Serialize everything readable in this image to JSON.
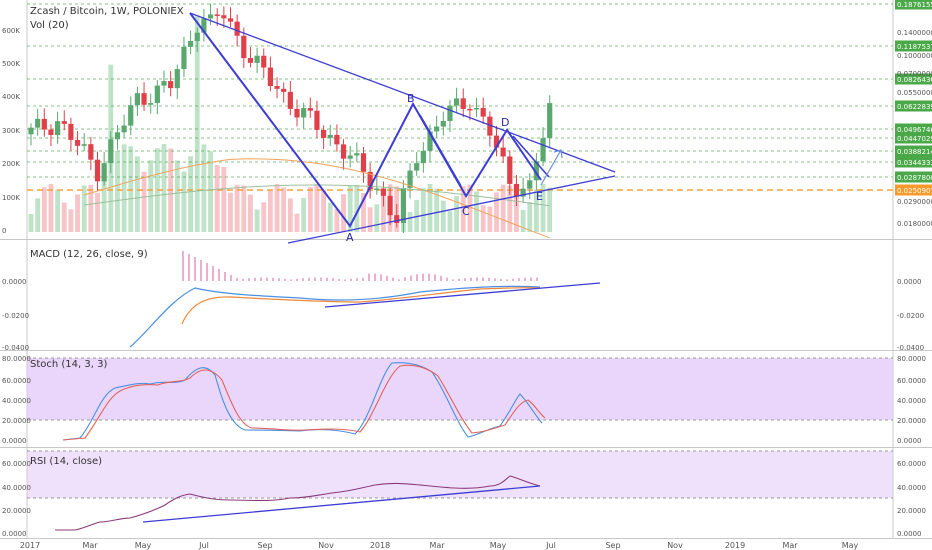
{
  "header": {
    "title": "Zcash / Bitcoin, 1W, POLONIEX",
    "vol_label": "Vol (20)"
  },
  "panes": {
    "macd_label": "MACD (12, 26, close, 9)",
    "stoch_label": "Stoch (14, 3, 3)",
    "rsi_label": "RSI (14, close)"
  },
  "colors": {
    "up": "#5aa870",
    "down": "#e0404a",
    "trendline": "#3d3dd6",
    "orange_level": "#f79a2a",
    "green_level": "#4aa848",
    "osc_band": "#e2c8f8",
    "macd_line": "#4a90e2",
    "signal_line": "#f0883a",
    "rsi_line": "#8b3a7a"
  },
  "chart_data": [
    {
      "type": "candlestick",
      "pane": "price",
      "x_tick_labels": [
        "2017",
        "Mar",
        "May",
        "Jul",
        "Sep",
        "Nov",
        "2018",
        "Mar",
        "May",
        "Jul",
        "Sep",
        "Nov",
        "2019",
        "Mar",
        "May"
      ],
      "left_axis_ticks": [
        "0",
        "100K",
        "200K",
        "300K",
        "400K",
        "500K",
        "600K"
      ],
      "right_axis_ticks": [
        "0.1400000",
        "0.1000000",
        "0.0700000",
        "0.0550000",
        "0.0290000",
        "0.0180000"
      ],
      "price_labels": [
        {
          "value": "0.18761553",
          "color": "#4aa848"
        },
        {
          "value": "0.11875372",
          "color": "#4aa848"
        },
        {
          "value": "0.08264363",
          "color": "#4aa848"
        },
        {
          "value": "0.06228395",
          "color": "#4aa848"
        },
        {
          "value": "0.04967460",
          "color": "#4aa848"
        },
        {
          "value": "0.04470294",
          "color": "#4aa848"
        },
        {
          "value": "0.03882141",
          "color": "#4aa848"
        },
        {
          "value": "0.03443333",
          "color": "#4aa848"
        },
        {
          "value": "0.02878001",
          "color": "#4aa848"
        },
        {
          "value": "0.02509072",
          "color": "#f79a2a"
        }
      ],
      "pattern_points": [
        "A",
        "B",
        "C",
        "D",
        "E"
      ],
      "grid": false
    },
    {
      "type": "line",
      "pane": "macd",
      "title": "MACD (12, 26, close, 9)",
      "y_tick_labels": [
        "0.0000",
        "-0.0200",
        "-0.0400"
      ],
      "series": [
        "macd",
        "signal",
        "histogram"
      ]
    },
    {
      "type": "line",
      "pane": "stoch",
      "title": "Stoch (14, 3, 3)",
      "y_tick_labels": [
        "80.0000",
        "60.0000",
        "40.0000",
        "20.0000",
        "0.0000"
      ],
      "ylim": [
        0,
        80
      ]
    },
    {
      "type": "line",
      "pane": "rsi",
      "title": "RSI (14, close)",
      "y_tick_labels": [
        "60.0000",
        "40.0000",
        "20.0000",
        "0.0000"
      ],
      "ylim": [
        0,
        70
      ]
    }
  ]
}
